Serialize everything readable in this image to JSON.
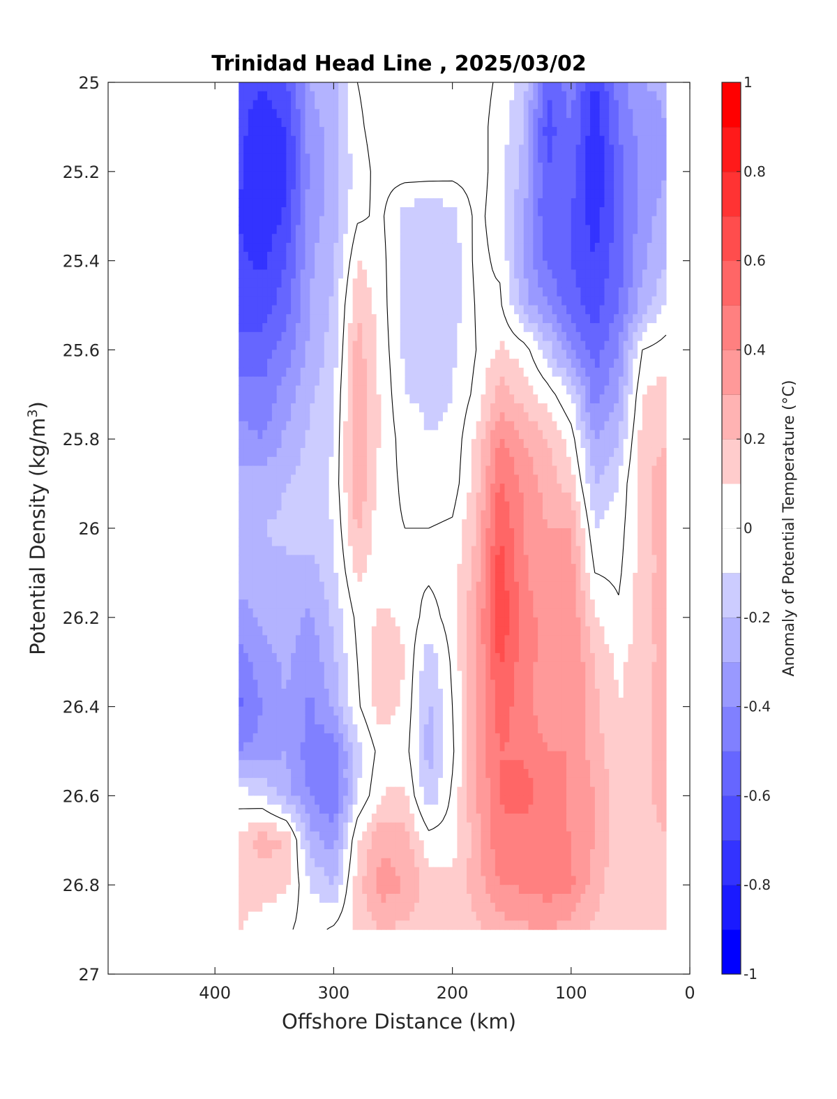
{
  "chart_data": {
    "type": "heatmap",
    "subtype": "filled-contour",
    "title": "Trinidad Head Line , 2025/03/02",
    "xlabel": "Offshore Distance (km)",
    "ylabel": "Potential Density (kg/m",
    "ylabel_sup": "3",
    "ylabel_close": ")",
    "xlim": [
      490,
      0
    ],
    "x_reversed": true,
    "ylim": [
      25,
      27
    ],
    "y_reversed": true,
    "x_ticks": [
      400,
      300,
      200,
      100,
      0
    ],
    "y_ticks": [
      25,
      25.2,
      25.4,
      25.6,
      25.8,
      26,
      26.2,
      26.4,
      26.6,
      26.8,
      27
    ],
    "y_tick_labels": [
      "25",
      "25.2",
      "25.4",
      "25.6",
      "25.8",
      "26",
      "26.2",
      "26.4",
      "26.6",
      "26.8",
      "27"
    ],
    "colorbar": {
      "label": "Anomaly of Potential Temperature (°C)",
      "range": [
        -1,
        1
      ],
      "step": 0.1,
      "ticks": [
        1,
        0.8,
        0.6,
        0.4,
        0.2,
        0,
        -0.2,
        -0.4,
        -0.6,
        -0.8,
        -1
      ],
      "tick_labels": [
        "1",
        "0.8",
        "0.6",
        "0.4",
        "0.2",
        "0",
        "-0.2",
        "-0.4",
        "-0.6",
        "-0.8",
        "-1"
      ],
      "colormap": "blue-white-red",
      "low_color": "#0000ff",
      "mid_color": "#ffffff",
      "high_color": "#ff0000"
    },
    "data_extent": {
      "x": [
        20,
        380
      ],
      "y": [
        25,
        26.9
      ]
    },
    "contour_line_level": 0,
    "x_grid": [
      380,
      360,
      340,
      320,
      300,
      280,
      260,
      240,
      220,
      200,
      180,
      160,
      140,
      120,
      100,
      80,
      60,
      40,
      20
    ],
    "y_grid": [
      25.0,
      25.1,
      25.2,
      25.3,
      25.4,
      25.5,
      25.6,
      25.7,
      25.8,
      25.9,
      26.0,
      26.1,
      26.2,
      26.3,
      26.4,
      26.5,
      26.6,
      26.7,
      26.8,
      26.9
    ],
    "anomaly_grid": [
      [
        -0.62,
        -0.7,
        -0.62,
        -0.3,
        -0.22,
        0.0,
        0.05,
        0.05,
        0.05,
        0.05,
        0.05,
        -0.02,
        -0.15,
        -0.6,
        -0.45,
        -0.72,
        -0.45,
        -0.3,
        -0.28
      ],
      [
        -0.66,
        -0.78,
        -0.7,
        -0.35,
        -0.25,
        -0.02,
        0.05,
        0.05,
        0.05,
        0.05,
        0.05,
        -0.05,
        -0.2,
        -0.65,
        -0.5,
        -0.78,
        -0.5,
        -0.35,
        -0.3
      ],
      [
        -0.68,
        -0.8,
        -0.72,
        -0.38,
        -0.25,
        -0.05,
        0.04,
        0.05,
        0.05,
        0.04,
        0.05,
        -0.05,
        -0.25,
        -0.6,
        -0.55,
        -0.8,
        -0.55,
        -0.38,
        -0.3
      ],
      [
        -0.7,
        -0.78,
        -0.68,
        -0.35,
        -0.25,
        -0.02,
        0.02,
        -0.15,
        -0.18,
        -0.15,
        0.03,
        -0.05,
        -0.28,
        -0.6,
        -0.6,
        -0.75,
        -0.55,
        -0.35,
        -0.25
      ],
      [
        -0.68,
        -0.72,
        -0.6,
        -0.32,
        -0.22,
        0.1,
        0.04,
        -0.15,
        -0.18,
        -0.16,
        0.03,
        -0.02,
        -0.3,
        -0.52,
        -0.6,
        -0.7,
        -0.55,
        -0.32,
        -0.22
      ],
      [
        -0.65,
        -0.65,
        -0.55,
        -0.3,
        -0.18,
        0.2,
        0.05,
        -0.15,
        -0.18,
        -0.16,
        0.01,
        0.02,
        -0.25,
        -0.4,
        -0.55,
        -0.65,
        -0.5,
        -0.25,
        -0.1
      ],
      [
        -0.55,
        -0.55,
        -0.45,
        -0.28,
        -0.15,
        0.25,
        0.06,
        -0.12,
        -0.15,
        -0.12,
        0.0,
        0.12,
        0.05,
        -0.15,
        -0.4,
        -0.55,
        -0.4,
        0.0,
        0.05
      ],
      [
        -0.45,
        -0.48,
        -0.35,
        -0.22,
        -0.12,
        0.3,
        0.08,
        -0.1,
        -0.12,
        -0.1,
        0.03,
        0.25,
        0.15,
        0.05,
        -0.1,
        -0.45,
        -0.3,
        0.1,
        0.15
      ],
      [
        -0.35,
        -0.4,
        -0.28,
        -0.18,
        -0.1,
        0.32,
        0.08,
        -0.05,
        -0.1,
        -0.08,
        0.12,
        0.4,
        0.3,
        0.2,
        0.05,
        -0.3,
        -0.2,
        0.15,
        0.2
      ],
      [
        -0.25,
        -0.25,
        -0.2,
        -0.15,
        -0.08,
        0.3,
        0.05,
        -0.02,
        -0.08,
        -0.06,
        0.15,
        0.52,
        0.38,
        0.25,
        0.15,
        -0.2,
        -0.1,
        0.18,
        0.25
      ],
      [
        -0.22,
        -0.2,
        -0.18,
        -0.15,
        -0.1,
        0.22,
        0.03,
        0.0,
        0.0,
        0.02,
        0.2,
        0.6,
        0.4,
        0.3,
        0.3,
        -0.1,
        -0.05,
        0.15,
        0.25
      ],
      [
        -0.25,
        -0.22,
        -0.22,
        -0.25,
        -0.12,
        0.12,
        0.05,
        0.02,
        0.02,
        0.05,
        0.25,
        0.66,
        0.42,
        0.32,
        0.35,
        0.0,
        -0.02,
        0.15,
        0.25
      ],
      [
        -0.35,
        -0.28,
        -0.25,
        -0.32,
        -0.18,
        0.03,
        0.12,
        0.08,
        -0.05,
        0.05,
        0.28,
        0.7,
        0.45,
        0.35,
        0.38,
        0.1,
        0.02,
        0.15,
        0.25
      ],
      [
        -0.45,
        -0.35,
        -0.28,
        -0.38,
        -0.22,
        0.0,
        0.18,
        0.1,
        -0.18,
        0.02,
        0.3,
        0.62,
        0.45,
        0.35,
        0.4,
        0.2,
        0.08,
        0.15,
        0.25
      ],
      [
        -0.52,
        -0.4,
        -0.3,
        -0.42,
        -0.28,
        -0.02,
        0.15,
        0.08,
        -0.22,
        0.0,
        0.3,
        0.55,
        0.45,
        0.32,
        0.4,
        0.22,
        0.1,
        0.15,
        0.25
      ],
      [
        -0.4,
        -0.35,
        -0.3,
        -0.45,
        -0.45,
        -0.15,
        0.05,
        0.05,
        -0.25,
        -0.02,
        0.3,
        0.5,
        0.48,
        0.4,
        0.4,
        0.25,
        0.12,
        0.15,
        0.3
      ],
      [
        -0.05,
        -0.1,
        -0.25,
        -0.4,
        -0.5,
        -0.1,
        0.1,
        0.12,
        -0.18,
        0.02,
        0.3,
        0.5,
        0.55,
        0.45,
        0.38,
        0.3,
        0.15,
        0.12,
        0.3
      ],
      [
        0.12,
        0.25,
        0.2,
        -0.25,
        -0.35,
        0.1,
        0.28,
        0.25,
        0.05,
        0.05,
        0.25,
        0.48,
        0.45,
        0.45,
        0.4,
        0.3,
        0.15,
        0.1,
        0.2
      ],
      [
        0.15,
        0.15,
        0.12,
        -0.1,
        -0.2,
        0.15,
        0.35,
        0.3,
        0.15,
        0.12,
        0.25,
        0.4,
        0.42,
        0.45,
        0.42,
        0.25,
        0.12,
        0.1,
        0.15
      ],
      [
        0.1,
        0.05,
        0.02,
        -0.05,
        0.02,
        0.12,
        0.2,
        0.18,
        0.15,
        0.15,
        0.18,
        0.25,
        0.28,
        0.3,
        0.25,
        0.18,
        0.12,
        0.1,
        0.1
      ]
    ]
  }
}
